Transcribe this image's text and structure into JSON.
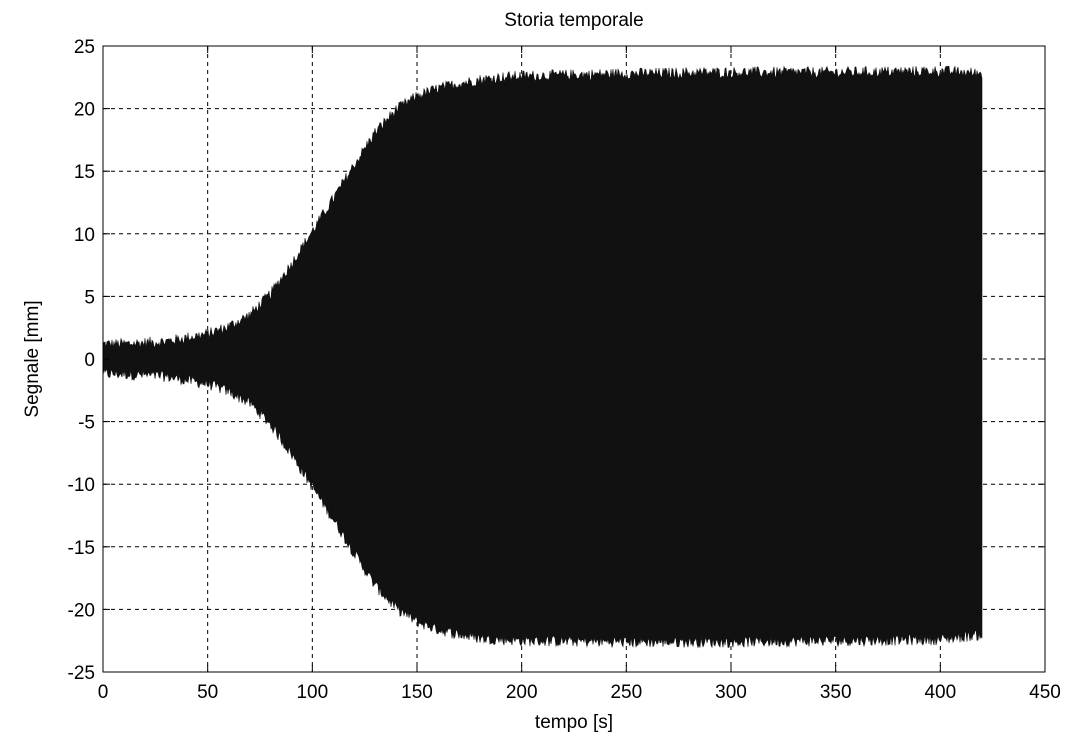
{
  "chart_data": {
    "type": "area",
    "title": "Storia temporale",
    "xlabel": "tempo [s]",
    "ylabel": "Segnale [mm]",
    "xlim": [
      0,
      450
    ],
    "ylim": [
      -25,
      25
    ],
    "x_ticks": [
      0,
      50,
      100,
      150,
      200,
      250,
      300,
      350,
      400,
      450
    ],
    "y_ticks": [
      -25,
      -20,
      -15,
      -10,
      -5,
      0,
      5,
      10,
      15,
      20,
      25
    ],
    "x_tick_labels": [
      "0",
      "50",
      "100",
      "150",
      "200",
      "250",
      "300",
      "350",
      "400",
      "450"
    ],
    "y_tick_labels": [
      "-25",
      "-20",
      "-15",
      "-10",
      "-5",
      "0",
      "5",
      "10",
      "15",
      "20",
      "25"
    ],
    "grid": true,
    "grid_style": "dashed",
    "series": [
      {
        "color": "#111111",
        "envelope": {
          "x": [
            0,
            10,
            20,
            30,
            40,
            50,
            60,
            70,
            80,
            90,
            100,
            110,
            120,
            130,
            140,
            150,
            160,
            170,
            180,
            190,
            200,
            250,
            300,
            350,
            400,
            420
          ],
          "upper": [
            1.2,
            1.2,
            1.3,
            1.4,
            1.7,
            2.0,
            2.6,
            3.5,
            5.2,
            7.6,
            10.2,
            12.8,
            15.5,
            18.1,
            19.9,
            21.0,
            21.6,
            22.0,
            22.3,
            22.5,
            22.6,
            22.8,
            22.9,
            22.9,
            23.0,
            22.8
          ],
          "lower": [
            -1.2,
            -1.2,
            -1.3,
            -1.4,
            -1.7,
            -2.0,
            -2.6,
            -3.5,
            -5.2,
            -7.6,
            -10.2,
            -12.8,
            -15.5,
            -18.1,
            -19.9,
            -21.0,
            -21.6,
            -22.0,
            -22.3,
            -22.4,
            -22.5,
            -22.6,
            -22.6,
            -22.5,
            -22.4,
            -22.0
          ]
        }
      }
    ]
  }
}
